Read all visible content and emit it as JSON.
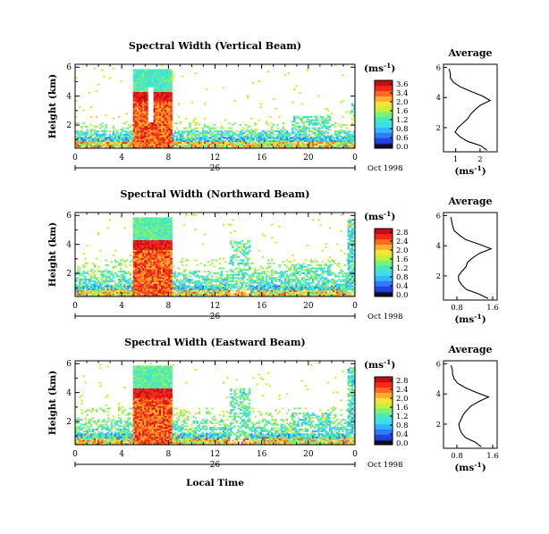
{
  "colors": {
    "colormap": [
      "#1a1a99",
      "#2244dd",
      "#2f7bff",
      "#33b5ff",
      "#3fdcf0",
      "#44eabb",
      "#7cf078",
      "#c6f03c",
      "#f5e23a",
      "#ffad2a",
      "#ff6a1f",
      "#f02a1c",
      "#c80d12"
    ],
    "line": "#000000",
    "background": "#ffffff"
  },
  "chart_data": [
    {
      "type": "heatmap",
      "title": "Spectral Width (Vertical Beam)",
      "ylabel": "Height (km)",
      "x_ticks": [
        "0",
        "4",
        "8",
        "12",
        "16",
        "20",
        "0"
      ],
      "y_ticks": [
        "6",
        "4",
        "2"
      ],
      "date_label": "26",
      "date_suffix": "Oct 1998",
      "xlim": [
        0,
        24
      ],
      "ylim": [
        0.4,
        6.2
      ],
      "colorbar": {
        "unit": "(ms",
        "unit_exp": "-1",
        "unit_close": ")",
        "ticks": [
          "3.6",
          "3.4",
          "2.0",
          "1.6",
          "1.2",
          "0.8",
          "0.6",
          "0.0"
        ]
      },
      "profile": {
        "title": "Average",
        "xlabel": "(ms",
        "xlabel_exp": "-1",
        "xlabel_close": ")",
        "x_ticks": [
          "1",
          "2"
        ],
        "y_ticks": [
          "6",
          "4",
          "2"
        ],
        "xlim": [
          0.5,
          2.7
        ],
        "heights": [
          0.5,
          0.8,
          1.1,
          1.4,
          1.7,
          2.0,
          2.3,
          2.6,
          2.9,
          3.2,
          3.5,
          3.8,
          4.1,
          4.4,
          4.7,
          5.0,
          5.3,
          5.6,
          5.9
        ],
        "values": [
          2.3,
          2.0,
          1.5,
          1.2,
          1.0,
          1.1,
          1.3,
          1.5,
          1.6,
          1.8,
          2.0,
          2.4,
          2.1,
          1.6,
          1.2,
          0.9,
          0.8,
          0.75,
          0.7
        ]
      }
    },
    {
      "type": "heatmap",
      "title": "Spectral Width (Northward Beam)",
      "ylabel": "Height (km)",
      "x_ticks": [
        "0",
        "4",
        "8",
        "12",
        "16",
        "20",
        "0"
      ],
      "y_ticks": [
        "6",
        "4",
        "2"
      ],
      "date_label": "26",
      "date_suffix": "Oct 1998",
      "xlim": [
        0,
        24
      ],
      "ylim": [
        0.4,
        6.2
      ],
      "colorbar": {
        "unit": "(ms",
        "unit_exp": "-1",
        "unit_close": ")",
        "ticks": [
          "2.8",
          "2.4",
          "2.0",
          "1.6",
          "1.2",
          "0.8",
          "0.4",
          "0.0"
        ]
      },
      "profile": {
        "title": "Average",
        "xlabel": "(ms",
        "xlabel_exp": "-1",
        "xlabel_close": ")",
        "x_ticks": [
          "0.8",
          "1.6"
        ],
        "y_ticks": [
          "6",
          "4",
          "2"
        ],
        "xlim": [
          0.5,
          1.7
        ],
        "heights": [
          0.5,
          0.8,
          1.1,
          1.4,
          1.7,
          2.0,
          2.3,
          2.6,
          2.9,
          3.2,
          3.5,
          3.8,
          4.1,
          4.4,
          4.7,
          5.0,
          5.3,
          5.6,
          5.9
        ],
        "values": [
          1.5,
          1.3,
          1.0,
          0.9,
          0.85,
          0.85,
          0.9,
          1.0,
          1.05,
          1.15,
          1.3,
          1.55,
          1.3,
          1.0,
          0.85,
          0.75,
          0.72,
          0.7,
          0.68
        ]
      }
    },
    {
      "type": "heatmap",
      "title": "Spectral Width (Eastward Beam)",
      "ylabel": "Height (km)",
      "x_ticks": [
        "0",
        "4",
        "8",
        "12",
        "16",
        "20",
        "0"
      ],
      "y_ticks": [
        "6",
        "4",
        "2"
      ],
      "date_label": "26",
      "date_suffix": "Oct 1998",
      "xlabel": "Local Time",
      "xlim": [
        0,
        24
      ],
      "ylim": [
        0.4,
        6.2
      ],
      "colorbar": {
        "unit": "(ms",
        "unit_exp": "-1",
        "unit_close": ")",
        "ticks": [
          "2.8",
          "2.4",
          "2.0",
          "1.6",
          "1.2",
          "0.8",
          "0.4",
          "0.0"
        ]
      },
      "profile": {
        "title": "Average",
        "xlabel": "(ms",
        "xlabel_exp": "-1",
        "xlabel_close": ")",
        "x_ticks": [
          "0.8",
          "1.6"
        ],
        "y_ticks": [
          "6",
          "4",
          "2"
        ],
        "xlim": [
          0.5,
          1.7
        ],
        "heights": [
          0.5,
          0.8,
          1.1,
          1.4,
          1.7,
          2.0,
          2.3,
          2.6,
          2.9,
          3.2,
          3.5,
          3.8,
          4.1,
          4.4,
          4.7,
          5.0,
          5.3,
          5.6,
          5.9
        ],
        "values": [
          1.35,
          1.2,
          1.0,
          0.9,
          0.85,
          0.85,
          0.9,
          0.95,
          1.0,
          1.1,
          1.3,
          1.5,
          1.25,
          1.0,
          0.82,
          0.75,
          0.72,
          0.7,
          0.68
        ]
      }
    }
  ]
}
